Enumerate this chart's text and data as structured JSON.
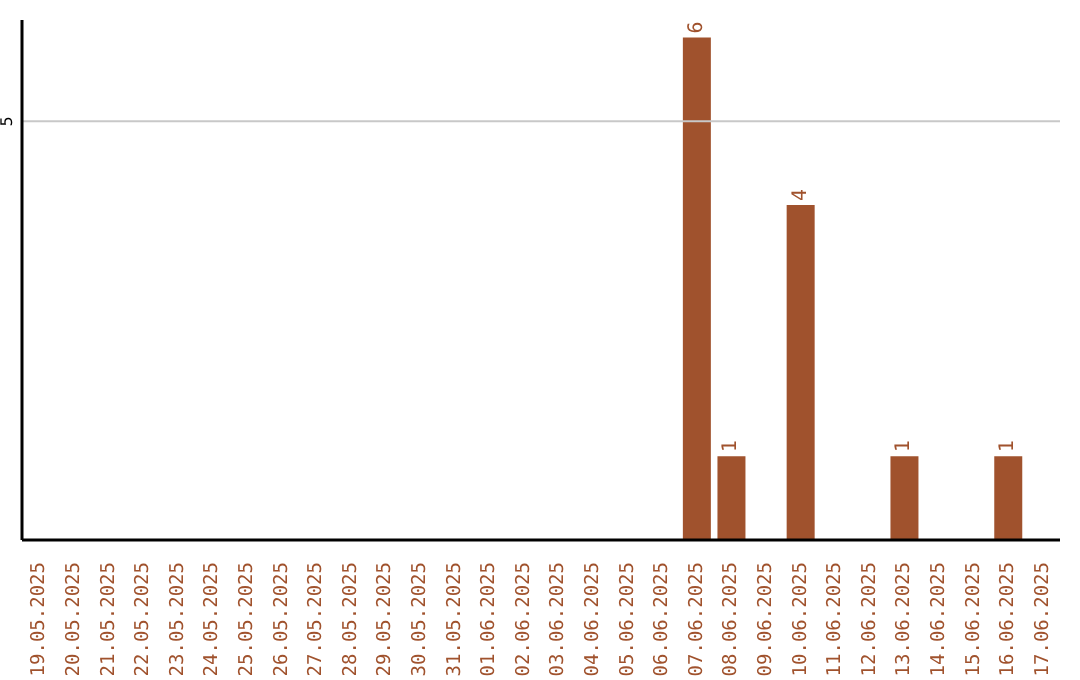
{
  "chart_data": {
    "type": "bar",
    "categories": [
      "19.05.2025",
      "20.05.2025",
      "21.05.2025",
      "22.05.2025",
      "23.05.2025",
      "24.05.2025",
      "25.05.2025",
      "26.05.2025",
      "27.05.2025",
      "28.05.2025",
      "29.05.2025",
      "30.05.2025",
      "31.05.2025",
      "01.06.2025",
      "02.06.2025",
      "03.06.2025",
      "04.06.2025",
      "05.06.2025",
      "06.06.2025",
      "07.06.2025",
      "08.06.2025",
      "09.06.2025",
      "10.06.2025",
      "11.06.2025",
      "12.06.2025",
      "13.06.2025",
      "14.06.2025",
      "15.06.2025",
      "16.06.2025",
      "17.06.2025"
    ],
    "values": [
      null,
      null,
      null,
      null,
      null,
      null,
      null,
      null,
      null,
      null,
      null,
      null,
      null,
      null,
      null,
      null,
      null,
      null,
      null,
      6,
      1,
      null,
      4,
      null,
      null,
      1,
      null,
      null,
      1,
      null
    ],
    "data_labels": true,
    "color": "#a0522d",
    "ref_lines": [
      {
        "axis": "y",
        "value": 5,
        "label": "5",
        "color": "#c8c8c8"
      }
    ]
  }
}
